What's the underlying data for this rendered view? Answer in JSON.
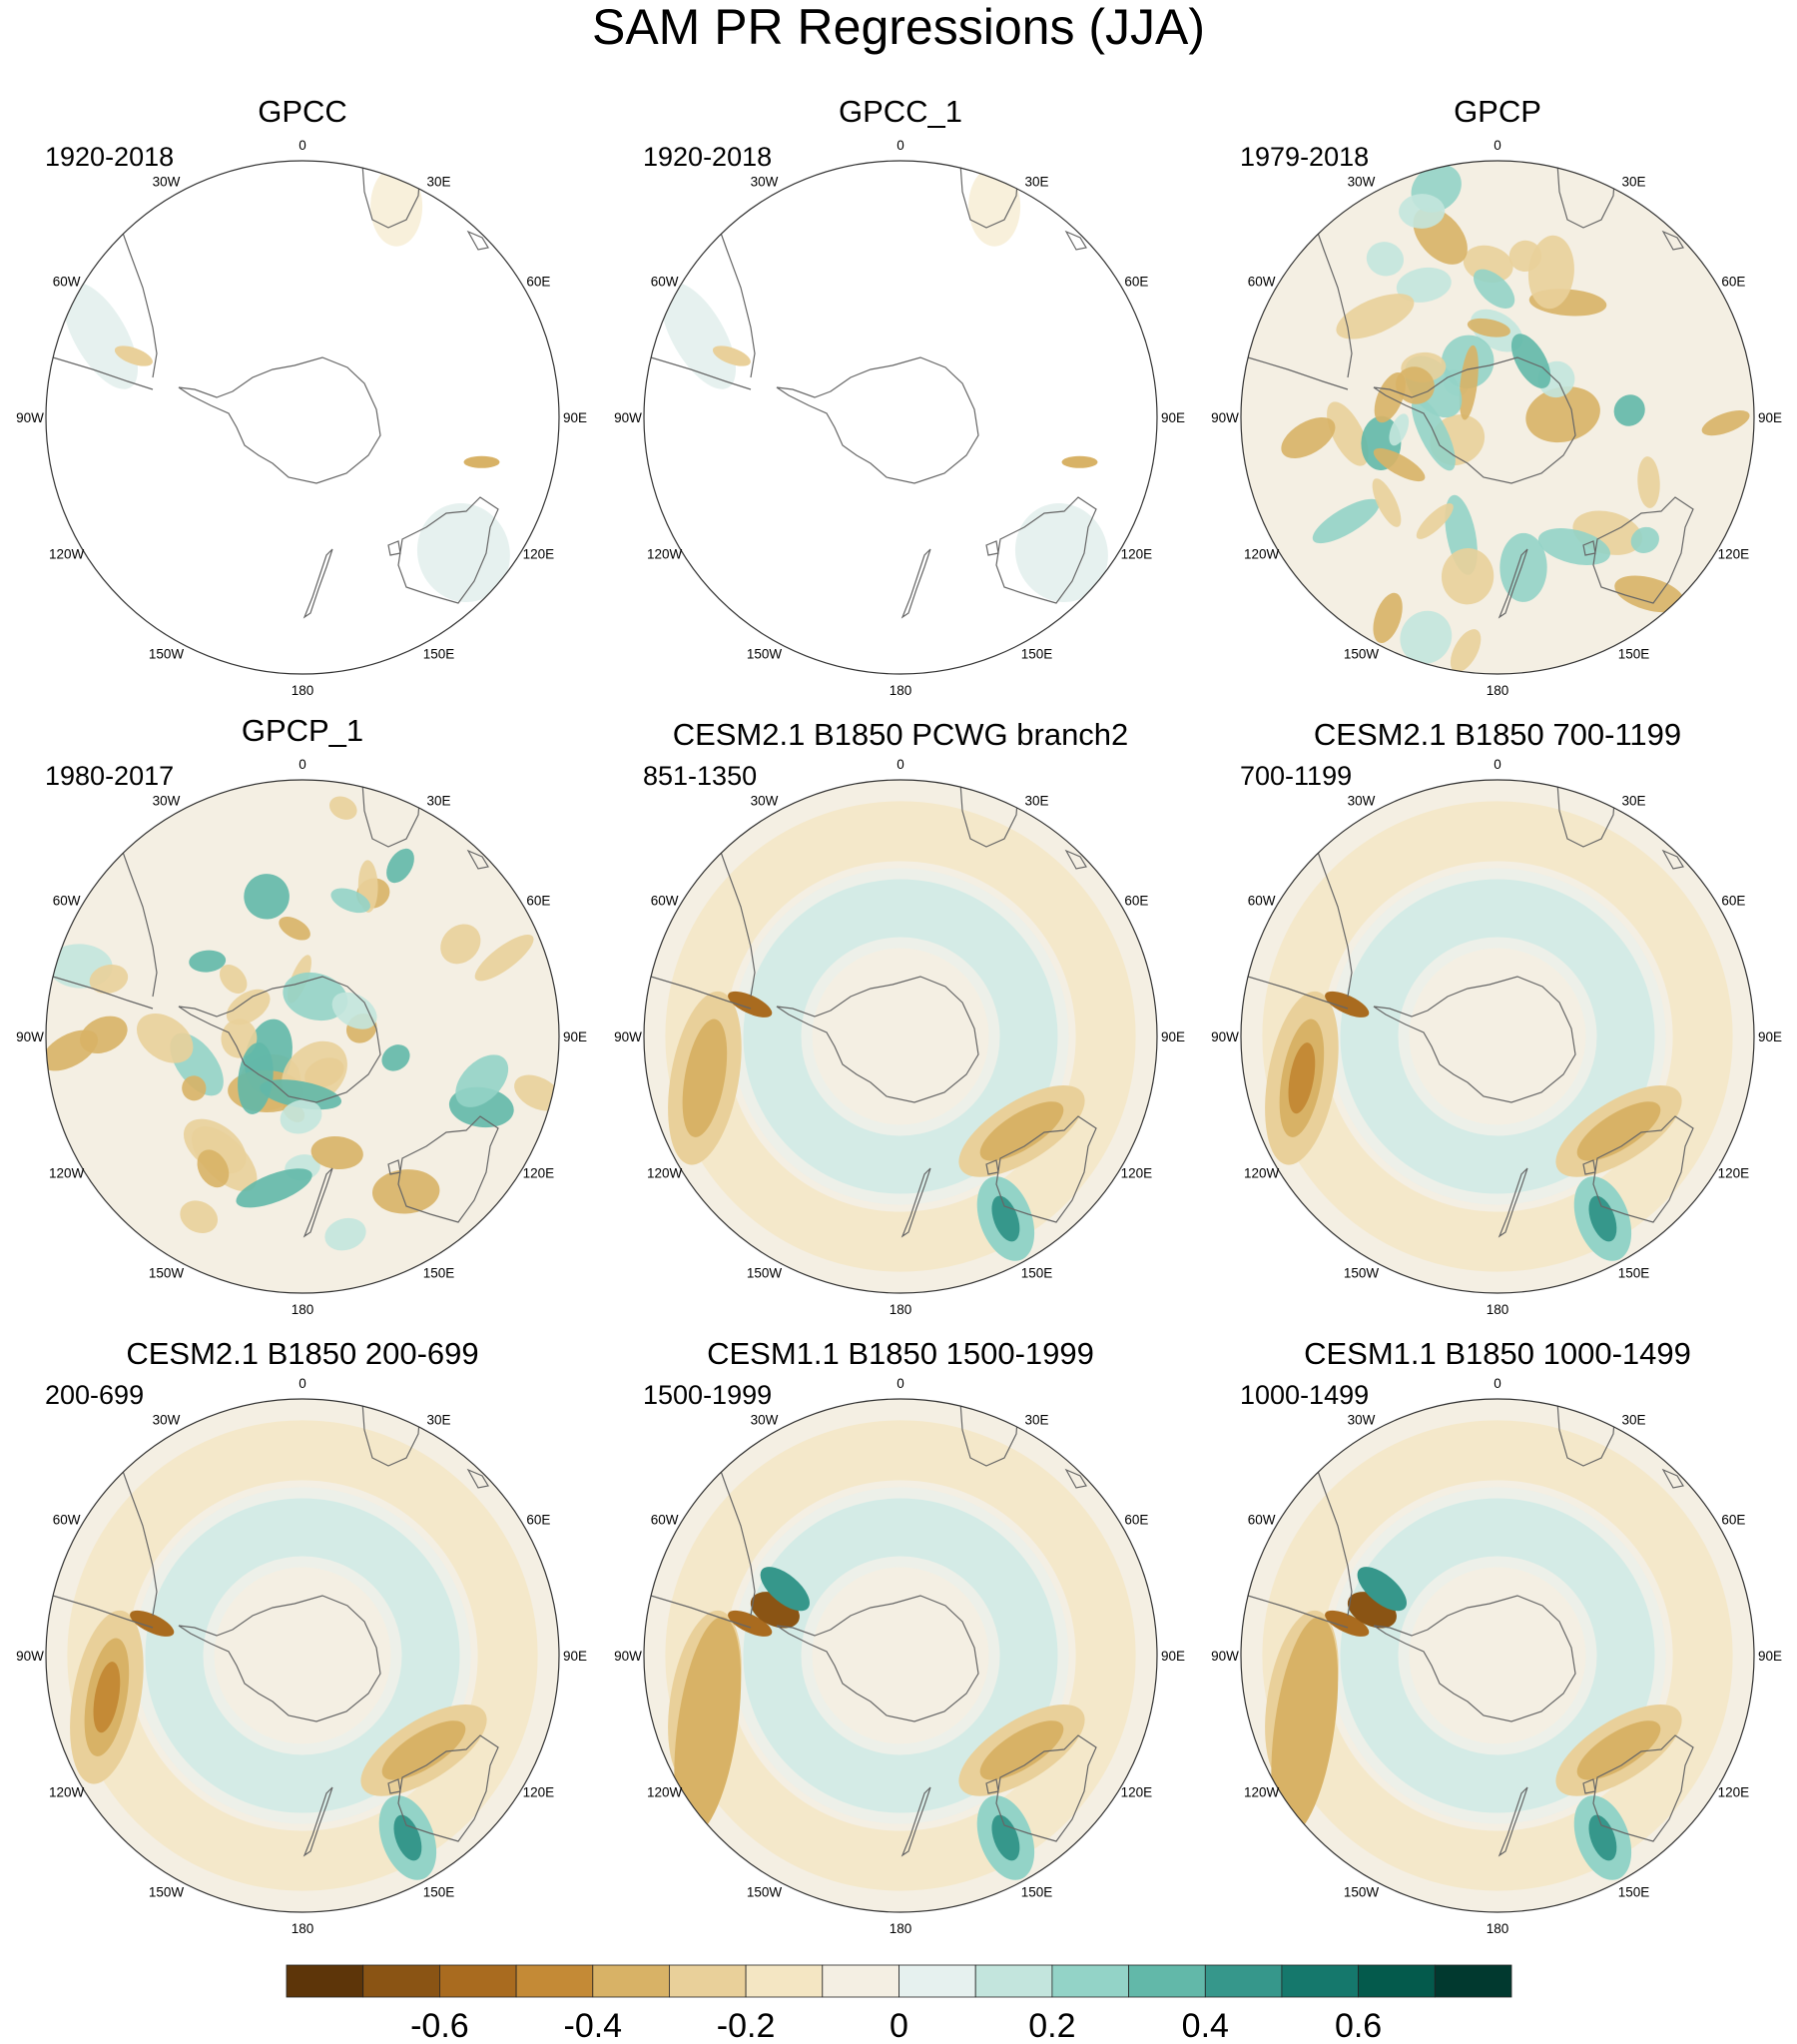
{
  "title": "SAM PR Regressions (JJA)",
  "panels": [
    {
      "title": "GPCC",
      "period": "1920-2018",
      "kind": "land"
    },
    {
      "title": "GPCC_1",
      "period": "1920-2018",
      "kind": "land"
    },
    {
      "title": "GPCP",
      "period": "1979-2018",
      "kind": "obs"
    },
    {
      "title": "GPCP_1",
      "period": "1980-2017",
      "kind": "obs"
    },
    {
      "title": "CESM2.1 B1850 PCWG branch2",
      "period": "851-1350",
      "kind": "model"
    },
    {
      "title": "CESM2.1 B1850 700-1199",
      "period": "700-1199",
      "kind": "model"
    },
    {
      "title": "CESM2.1 B1850 200-699",
      "period": "200-699",
      "kind": "model"
    },
    {
      "title": "CESM1.1 B1850 1500-1999",
      "period": "1500-1999",
      "kind": "model"
    },
    {
      "title": "CESM1.1 B1850 1000-1499",
      "period": "1000-1499",
      "kind": "model"
    }
  ],
  "longitude_labels": [
    {
      "deg": 0,
      "text": "0"
    },
    {
      "deg": 30,
      "text": "30E"
    },
    {
      "deg": 60,
      "text": "60E"
    },
    {
      "deg": 90,
      "text": "90E"
    },
    {
      "deg": 120,
      "text": "120E"
    },
    {
      "deg": 150,
      "text": "150E"
    },
    {
      "deg": 180,
      "text": "180"
    },
    {
      "deg": -150,
      "text": "150W"
    },
    {
      "deg": -120,
      "text": "120W"
    },
    {
      "deg": -90,
      "text": "90W"
    },
    {
      "deg": -60,
      "text": "60W"
    },
    {
      "deg": -30,
      "text": "30W"
    }
  ],
  "colorbar": {
    "colors": [
      "#5d3509",
      "#8a5414",
      "#a96b1f",
      "#c48a36",
      "#d8b266",
      "#e9d09a",
      "#f4e6c3",
      "#f4efe3",
      "#e6f1ef",
      "#c3e5dd",
      "#93d3c7",
      "#62b8a9",
      "#36978b",
      "#15786c",
      "#045a4c",
      "#01392f"
    ],
    "tick_labels": [
      {
        "value": -0.6,
        "text": "-0.6"
      },
      {
        "value": -0.4,
        "text": "-0.4"
      },
      {
        "value": -0.2,
        "text": "-0.2"
      },
      {
        "value": 0,
        "text": "0"
      },
      {
        "value": 0.2,
        "text": "0.2"
      },
      {
        "value": 0.4,
        "text": "0.4"
      },
      {
        "value": 0.6,
        "text": "0.6"
      }
    ],
    "range": [
      -0.8,
      0.8
    ]
  }
}
